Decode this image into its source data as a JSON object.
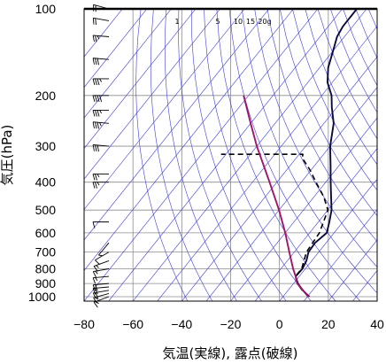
{
  "chart_data": {
    "type": "skew-t",
    "xlabel": "気温(実線), 露点(破線)",
    "ylabel": "気圧(hPa)",
    "x_ticks": [
      -80,
      -60,
      -40,
      -20,
      0,
      20,
      40
    ],
    "y_ticks": [
      100,
      200,
      300,
      400,
      500,
      600,
      700,
      800,
      900,
      1000
    ],
    "xlim": [
      -80,
      40
    ],
    "ylim": [
      1050,
      100
    ],
    "mixing_ratio_labels": [
      "1",
      "5",
      "10",
      "15",
      "20g"
    ],
    "series": [
      {
        "style": "solid",
        "color": "#0a0a3c",
        "points": [
          {
            "p": 1000,
            "t": 10.8
          },
          {
            "p": 950,
            "t": 6.0
          },
          {
            "p": 900,
            "t": 1.8
          },
          {
            "p": 850,
            "t": -1.5
          },
          {
            "p": 800,
            "t": -1.2
          },
          {
            "p": 750,
            "t": -2.2
          },
          {
            "p": 700,
            "t": -4.2
          },
          {
            "p": 650,
            "t": -4.5
          },
          {
            "p": 600,
            "t": -3.0
          },
          {
            "p": 550,
            "t": -5.5
          },
          {
            "p": 500,
            "t": -8.5
          },
          {
            "p": 450,
            "t": -13.0
          },
          {
            "p": 400,
            "t": -18.0
          },
          {
            "p": 350,
            "t": -23.5
          },
          {
            "p": 300,
            "t": -30.0
          },
          {
            "p": 250,
            "t": -36.0
          },
          {
            "p": 220,
            "t": -42.0
          },
          {
            "p": 200,
            "t": -46.0
          },
          {
            "p": 180,
            "t": -52.0
          },
          {
            "p": 160,
            "t": -56.5
          },
          {
            "p": 140,
            "t": -60.0
          },
          {
            "p": 125,
            "t": -63.0
          },
          {
            "p": 115,
            "t": -64.0
          },
          {
            "p": 100,
            "t": -64.0
          }
        ]
      },
      {
        "style": "dashed",
        "color": "#000000",
        "points": [
          {
            "p": 1000,
            "t": 10.5
          },
          {
            "p": 950,
            "t": 5.8
          },
          {
            "p": 900,
            "t": 1.5
          },
          {
            "p": 850,
            "t": -1.6
          },
          {
            "p": 800,
            "t": -1.5
          },
          {
            "p": 700,
            "t": -5.0
          },
          {
            "p": 600,
            "t": -6.0
          },
          {
            "p": 500,
            "t": -10.0
          },
          {
            "p": 450,
            "t": -16.0
          },
          {
            "p": 400,
            "t": -24.0
          },
          {
            "p": 360,
            "t": -31.0
          },
          {
            "p": 330,
            "t": -37.5
          },
          {
            "p": 320,
            "t": -38.5
          },
          {
            "p": 320,
            "t": -72.0
          }
        ]
      },
      {
        "style": "solid",
        "color": "#a0146e",
        "points": [
          {
            "p": 1000,
            "t": 10.5
          },
          {
            "p": 900,
            "t": 1.5
          },
          {
            "p": 850,
            "t": -1.5
          },
          {
            "p": 800,
            "t": -5.0
          },
          {
            "p": 700,
            "t": -12.0
          },
          {
            "p": 600,
            "t": -20.0
          },
          {
            "p": 500,
            "t": -30.0
          },
          {
            "p": 400,
            "t": -43.0
          },
          {
            "p": 300,
            "t": -60.0
          },
          {
            "p": 250,
            "t": -70.0
          },
          {
            "p": 200,
            "t": -82.0
          }
        ]
      }
    ],
    "wind_barbs": [
      {
        "p": 1000,
        "speed": 15,
        "dir": 250
      },
      {
        "p": 975,
        "speed": 15,
        "dir": 255
      },
      {
        "p": 950,
        "speed": 20,
        "dir": 260
      },
      {
        "p": 925,
        "speed": 20,
        "dir": 265
      },
      {
        "p": 900,
        "speed": 20,
        "dir": 265
      },
      {
        "p": 850,
        "speed": 15,
        "dir": 265
      },
      {
        "p": 800,
        "speed": 15,
        "dir": 260
      },
      {
        "p": 750,
        "speed": 15,
        "dir": 250
      },
      {
        "p": 700,
        "speed": 10,
        "dir": 240
      },
      {
        "p": 650,
        "speed": 5,
        "dir": 220
      },
      {
        "p": 550,
        "speed": 10,
        "dir": 270
      },
      {
        "p": 400,
        "speed": 25,
        "dir": 270
      },
      {
        "p": 375,
        "speed": 25,
        "dir": 270
      },
      {
        "p": 300,
        "speed": 30,
        "dir": 275
      },
      {
        "p": 250,
        "speed": 35,
        "dir": 275
      },
      {
        "p": 225,
        "speed": 35,
        "dir": 270
      },
      {
        "p": 200,
        "speed": 40,
        "dir": 270
      },
      {
        "p": 175,
        "speed": 35,
        "dir": 270
      },
      {
        "p": 150,
        "speed": 30,
        "dir": 275
      },
      {
        "p": 125,
        "speed": 25,
        "dir": 275
      },
      {
        "p": 110,
        "speed": 20,
        "dir": 280
      },
      {
        "p": 100,
        "speed": 20,
        "dir": 285
      }
    ]
  }
}
